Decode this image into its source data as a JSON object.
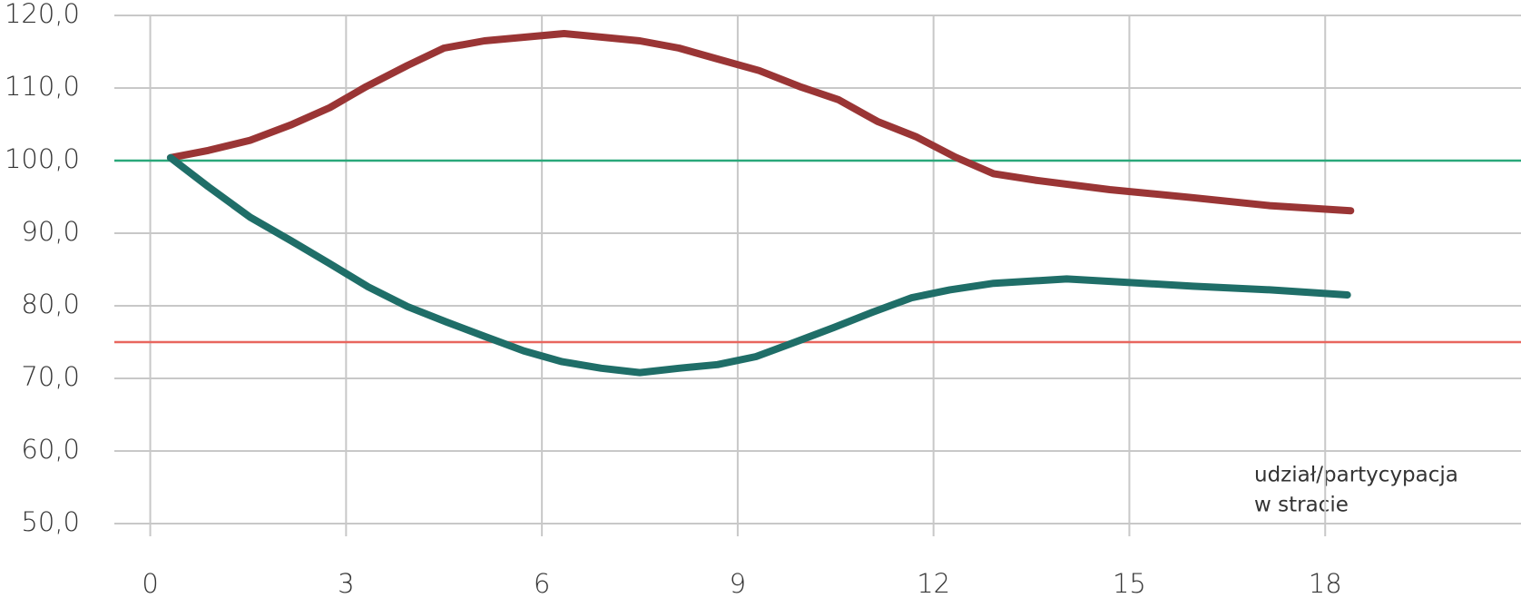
{
  "chart_data": {
    "type": "line",
    "annotation": [
      "udział/partycypacja",
      "w stracie"
    ],
    "xlim": [
      -0.55,
      21
    ],
    "xticks": [
      0,
      3,
      6,
      9,
      12,
      15,
      18
    ],
    "ylim": [
      50,
      120
    ],
    "yticks": [
      {
        "value": 50,
        "label": "50,0"
      },
      {
        "value": 60,
        "label": "60,0"
      },
      {
        "value": 70,
        "label": "70,0"
      },
      {
        "value": 80,
        "label": "80,0"
      },
      {
        "value": 90,
        "label": "90,0"
      },
      {
        "value": 100,
        "label": "100,0"
      },
      {
        "value": 110,
        "label": "110,0"
      },
      {
        "value": 120,
        "label": "120,0"
      }
    ],
    "grid": true,
    "hlines": [
      {
        "value": 100,
        "color": "#2aa87a"
      },
      {
        "value": 75,
        "color": "#e8665e"
      }
    ],
    "series": [
      {
        "color": "#9a3535",
        "x": [
          0.31,
          0.89,
          1.53,
          2.15,
          2.75,
          3.31,
          3.94,
          4.5,
          5.12,
          6.34,
          7.5,
          8.1,
          8.69,
          9.33,
          9.95,
          10.54,
          11.14,
          11.73,
          12.33,
          12.92,
          13.56,
          14.7,
          15.97,
          17.15,
          18.39
        ],
        "values": [
          100.4,
          101.4,
          102.8,
          104.9,
          107.3,
          110.2,
          113.1,
          115.5,
          116.5,
          117.5,
          116.5,
          115.5,
          114.0,
          112.4,
          110.2,
          108.4,
          105.4,
          103.3,
          100.5,
          98.2,
          97.3,
          96.0,
          94.9,
          93.8,
          93.1
        ]
      },
      {
        "color": "#1f6e68",
        "x": [
          0.31,
          0.89,
          1.53,
          2.15,
          2.75,
          3.34,
          3.94,
          4.53,
          5.12,
          5.72,
          6.31,
          6.91,
          7.5,
          8.1,
          8.69,
          9.28,
          9.88,
          10.47,
          11.06,
          11.66,
          12.25,
          12.92,
          14.04,
          15.22,
          15.97,
          17.15,
          18.34
        ],
        "values": [
          100.4,
          96.4,
          92.2,
          89.0,
          85.8,
          82.6,
          79.9,
          77.8,
          75.8,
          73.8,
          72.3,
          71.4,
          70.8,
          71.4,
          71.9,
          73.0,
          75.0,
          77.0,
          79.1,
          81.1,
          82.2,
          83.1,
          83.7,
          83.1,
          82.7,
          82.2,
          81.5
        ]
      }
    ]
  }
}
